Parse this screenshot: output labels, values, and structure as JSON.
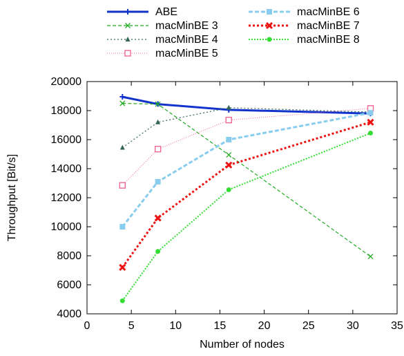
{
  "chart_data": {
    "type": "line",
    "title": "",
    "xlabel": "Number of nodes",
    "ylabel": "Throughput [Bit/s]",
    "xlim": [
      0,
      35
    ],
    "ylim": [
      4000,
      20000
    ],
    "xticks": [
      0,
      5,
      10,
      15,
      20,
      25,
      30,
      35
    ],
    "yticks": [
      4000,
      6000,
      8000,
      10000,
      12000,
      14000,
      16000,
      18000,
      20000
    ],
    "xtick_labels": [
      "0",
      "5",
      "10",
      "15",
      "20",
      "25",
      "30",
      "35"
    ],
    "ytick_labels": [
      "4000",
      "6000",
      "8000",
      "10000",
      "12000",
      "14000",
      "16000",
      "18000",
      "20000"
    ],
    "grid": false,
    "legend_position": "top",
    "x": [
      4,
      8,
      16,
      32
    ],
    "series": [
      {
        "name": "ABE",
        "values": [
          18950,
          18450,
          18050,
          17800
        ],
        "color": "#1133cc",
        "dash": "",
        "width": 3,
        "marker": "plus"
      },
      {
        "name": "macMinBE 3",
        "values": [
          18500,
          18450,
          14950,
          7950
        ],
        "color": "#22aa22",
        "dash": "5,3",
        "width": 1.2,
        "marker": "x"
      },
      {
        "name": "macMinBE 4",
        "values": [
          15450,
          17200,
          18200,
          17900
        ],
        "color": "#336655",
        "dash": "2,3",
        "width": 1.2,
        "marker": "triangle"
      },
      {
        "name": "macMinBE 5",
        "values": [
          12850,
          15350,
          17350,
          18150
        ],
        "color": "#ee6699",
        "dash": "1,2",
        "width": 1,
        "marker": "square-open"
      },
      {
        "name": "macMinBE 6",
        "values": [
          10000,
          13100,
          16000,
          17850
        ],
        "color": "#88ccee",
        "dash": "6,3",
        "width": 3,
        "marker": "square"
      },
      {
        "name": "macMinBE 7",
        "values": [
          7200,
          10600,
          14250,
          17200
        ],
        "color": "#ee1111",
        "dash": "3,3",
        "width": 3,
        "marker": "x-bold"
      },
      {
        "name": "macMinBE 8",
        "values": [
          4900,
          8300,
          12550,
          16450
        ],
        "color": "#33dd33",
        "dash": "2,2",
        "width": 2,
        "marker": "circle"
      }
    ]
  }
}
